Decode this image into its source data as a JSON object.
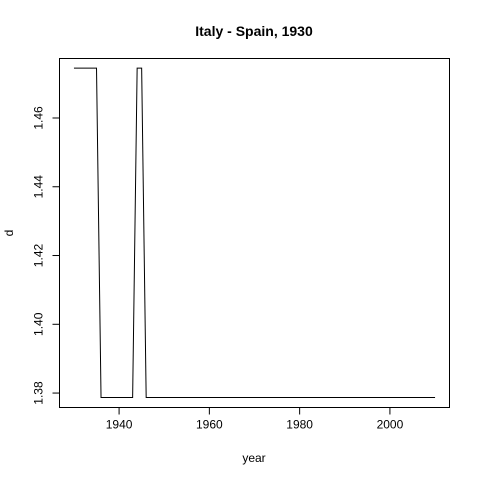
{
  "chart_data": {
    "type": "line",
    "title": "Italy - Spain, 1930",
    "xlabel": "year",
    "ylabel": "d",
    "xlim": [
      1926.8,
      2013.2
    ],
    "ylim": [
      1.3758,
      1.4773
    ],
    "x_ticks": [
      1940,
      1960,
      1980,
      2000
    ],
    "y_ticks": [
      1.38,
      1.4,
      1.42,
      1.44,
      1.46
    ],
    "x_tick_labels": [
      "1940",
      "1960",
      "1980",
      "2000"
    ],
    "y_tick_labels": [
      "1.38",
      "1.40",
      "1.42",
      "1.44",
      "1.46"
    ],
    "grid": false,
    "series": [
      {
        "points": [
          [
            1930,
            1.4745
          ],
          [
            1935,
            1.4745
          ],
          [
            1936,
            1.3787
          ],
          [
            1943,
            1.3787
          ],
          [
            1944,
            1.4745
          ],
          [
            1945,
            1.4745
          ],
          [
            1946,
            1.3787
          ],
          [
            2010,
            1.3787
          ]
        ]
      }
    ]
  }
}
